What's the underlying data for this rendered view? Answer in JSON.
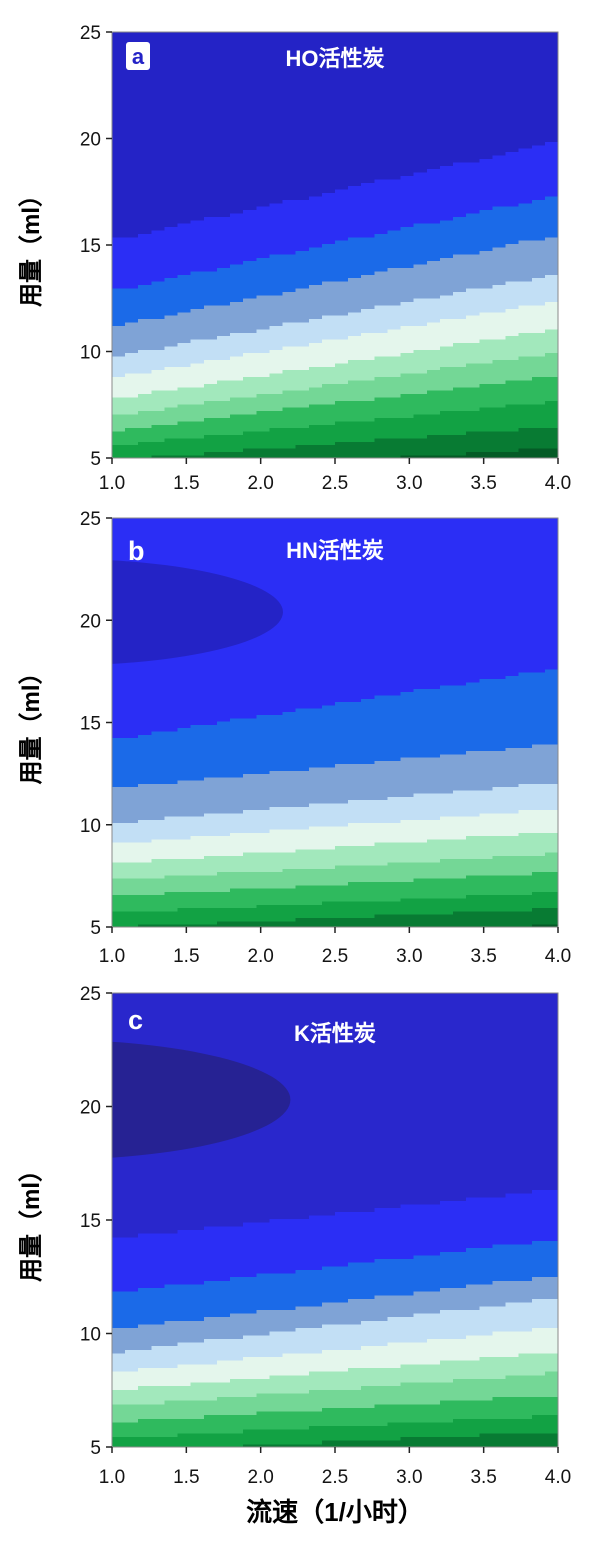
{
  "figure": {
    "x_axis_label": "流速（1/小时）",
    "y_axis_label": "用量（ml）",
    "x_tick_labels": [
      "1.0",
      "1.5",
      "2.0",
      "2.5",
      "3.0",
      "3.5",
      "4.0"
    ],
    "y_tick_labels": [
      "25",
      "20",
      "15",
      "10",
      "5"
    ],
    "background_color": "#ffffff",
    "panel_letters": [
      "a",
      "b",
      "c"
    ]
  },
  "chart_data": [
    {
      "type": "contour",
      "panel_letter": "a",
      "title": "HO活性炭",
      "xlabel": "流速（1/小时）",
      "ylabel": "用量（ml）",
      "x_range": [
        1.0,
        4.0
      ],
      "y_range": [
        5,
        25
      ],
      "x_ticks": [
        1.0,
        1.5,
        2.0,
        2.5,
        3.0,
        3.5,
        4.0
      ],
      "y_ticks": [
        25,
        20,
        15,
        10,
        5
      ],
      "letter_badge": true,
      "grid": false,
      "bands": [
        {
          "color": "#2423c6",
          "top_at_xmin": 26.0,
          "top_at_xmax": 26.0
        },
        {
          "color": "#2b2ef5",
          "top_at_xmin": 15.3,
          "top_at_xmax": 19.9
        },
        {
          "color": "#1b6ae8",
          "top_at_xmin": 12.9,
          "top_at_xmax": 17.4
        },
        {
          "color": "#7fa3d6",
          "top_at_xmin": 11.2,
          "top_at_xmax": 15.5
        },
        {
          "color": "#c2dff5",
          "top_at_xmin": 9.8,
          "top_at_xmax": 13.7
        },
        {
          "color": "#e4f6ec",
          "top_at_xmin": 8.8,
          "top_at_xmax": 12.4
        },
        {
          "color": "#a2e8bc",
          "top_at_xmin": 7.8,
          "top_at_xmax": 11.1
        },
        {
          "color": "#74d796",
          "top_at_xmin": 7.0,
          "top_at_xmax": 10.0
        },
        {
          "color": "#2fba5e",
          "top_at_xmin": 6.3,
          "top_at_xmax": 8.9
        },
        {
          "color": "#12a244",
          "top_at_xmin": 5.6,
          "top_at_xmax": 7.7
        },
        {
          "color": "#087b33",
          "top_at_xmin": 4.9,
          "top_at_xmax": 6.5
        },
        {
          "color": "#045b26",
          "top_at_xmin": 4.2,
          "top_at_xmax": 5.5
        }
      ],
      "ellipse": null
    },
    {
      "type": "contour",
      "panel_letter": "b",
      "title": "HN活性炭",
      "xlabel": "流速（1/小时）",
      "ylabel": "用量（ml）",
      "x_range": [
        1.0,
        4.0
      ],
      "y_range": [
        5,
        25
      ],
      "x_ticks": [
        1.0,
        1.5,
        2.0,
        2.5,
        3.0,
        3.5,
        4.0
      ],
      "y_ticks": [
        25,
        20,
        15,
        10,
        5
      ],
      "letter_badge": false,
      "grid": false,
      "bands": [
        {
          "color": "#2b2ef5",
          "top_at_xmin": 26.0,
          "top_at_xmax": 26.0
        },
        {
          "color": "#1b6ae8",
          "top_at_xmin": 14.2,
          "top_at_xmax": 17.7
        },
        {
          "color": "#7fa3d6",
          "top_at_xmin": 11.8,
          "top_at_xmax": 14.0
        },
        {
          "color": "#c2dff5",
          "top_at_xmin": 10.1,
          "top_at_xmax": 12.1
        },
        {
          "color": "#e4f6ec",
          "top_at_xmin": 9.1,
          "top_at_xmax": 10.8
        },
        {
          "color": "#a2e8bc",
          "top_at_xmin": 8.1,
          "top_at_xmax": 9.7
        },
        {
          "color": "#74d796",
          "top_at_xmin": 7.3,
          "top_at_xmax": 8.6
        },
        {
          "color": "#2fba5e",
          "top_at_xmin": 6.5,
          "top_at_xmax": 7.7
        },
        {
          "color": "#12a244",
          "top_at_xmin": 5.7,
          "top_at_xmax": 6.7
        },
        {
          "color": "#087b33",
          "top_at_xmin": 5.0,
          "top_at_xmax": 5.9
        },
        {
          "color": "#045b26",
          "top_at_xmin": 4.3,
          "top_at_xmax": 5.1
        }
      ],
      "ellipse": {
        "color": "#2423c6",
        "cx": 0.66,
        "cy": 20.4,
        "rx": 1.49,
        "ry": 2.6
      }
    },
    {
      "type": "contour",
      "panel_letter": "c",
      "title": "K活性炭",
      "xlabel": "流速（1/小时）",
      "ylabel": "用量（ml）",
      "x_range": [
        1.0,
        4.0
      ],
      "y_range": [
        5,
        25
      ],
      "x_ticks": [
        1.0,
        1.5,
        2.0,
        2.5,
        3.0,
        3.5,
        4.0
      ],
      "y_ticks": [
        25,
        20,
        15,
        10,
        5
      ],
      "letter_badge": false,
      "grid": false,
      "bands": [
        {
          "color": "#2927cc",
          "top_at_xmin": 26.0,
          "top_at_xmax": 26.0
        },
        {
          "color": "#2b2ef5",
          "top_at_xmin": 14.2,
          "top_at_xmax": 16.4
        },
        {
          "color": "#1b6ae8",
          "top_at_xmin": 11.8,
          "top_at_xmax": 14.2
        },
        {
          "color": "#7fa3d6",
          "top_at_xmin": 10.2,
          "top_at_xmax": 12.6
        },
        {
          "color": "#c2dff5",
          "top_at_xmin": 9.2,
          "top_at_xmax": 11.6
        },
        {
          "color": "#e4f6ec",
          "top_at_xmin": 8.3,
          "top_at_xmax": 10.3
        },
        {
          "color": "#a2e8bc",
          "top_at_xmin": 7.5,
          "top_at_xmax": 9.2
        },
        {
          "color": "#74d796",
          "top_at_xmin": 6.8,
          "top_at_xmax": 8.3
        },
        {
          "color": "#2fba5e",
          "top_at_xmin": 6.1,
          "top_at_xmax": 7.3
        },
        {
          "color": "#12a244",
          "top_at_xmin": 5.4,
          "top_at_xmax": 6.4
        },
        {
          "color": "#087b33",
          "top_at_xmin": 4.8,
          "top_at_xmax": 5.7
        },
        {
          "color": "#045b26",
          "top_at_xmin": 4.1,
          "top_at_xmax": 5.0
        }
      ],
      "ellipse": {
        "color": "#262293",
        "cx": 0.56,
        "cy": 20.3,
        "rx": 1.64,
        "ry": 2.65
      }
    }
  ]
}
